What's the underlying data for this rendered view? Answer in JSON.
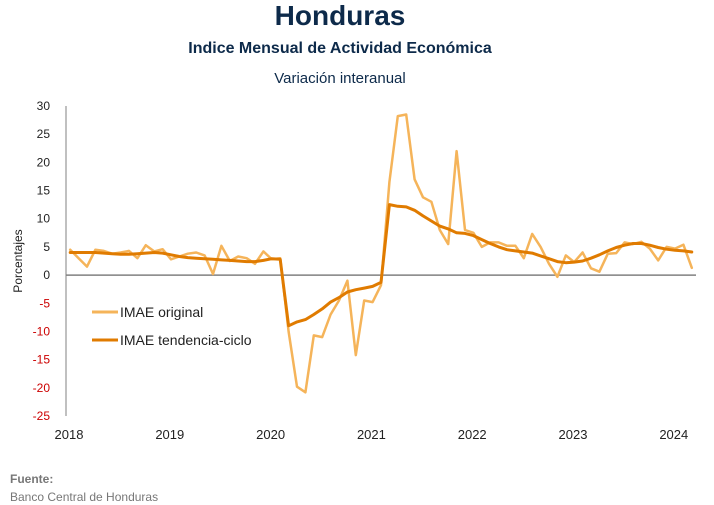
{
  "header": {
    "title": "Honduras",
    "subtitle": "Indice Mensual de  Actividad Económica",
    "subtitle2": "Variación interanual"
  },
  "footer": {
    "label": "Fuente:",
    "source": "Banco Central de Honduras"
  },
  "chart_data": {
    "type": "line",
    "title": "Honduras",
    "ylabel": "Porcentajes",
    "xlabel": "",
    "ylim": [
      -25,
      30
    ],
    "yticks": [
      "30",
      "25",
      "20",
      "15",
      "10",
      "5",
      "0",
      "-5",
      "-10",
      "-15",
      "-20",
      "-25"
    ],
    "xticks": [
      "2018",
      "2019",
      "2020",
      "2021",
      "2022",
      "2023",
      "2024"
    ],
    "legend_position": "lower-left",
    "grid": false,
    "zero_line": true,
    "colors": {
      "original": "#f5b45a",
      "trend": "#e07b00",
      "negative_tick": "#cc0000",
      "axis": "#808080"
    },
    "x_start": "2018-01",
    "series": [
      {
        "name": "IMAE original",
        "values": [
          4.5,
          3.0,
          1.5,
          4.5,
          4.3,
          3.8,
          4.0,
          4.3,
          3.0,
          5.3,
          4.2,
          4.6,
          2.8,
          3.3,
          3.8,
          4.0,
          3.5,
          0.2,
          5.2,
          2.5,
          3.3,
          3.0,
          2.0,
          4.2,
          2.8,
          3.0,
          -10.0,
          -19.8,
          -20.8,
          -10.7,
          -11.0,
          -7.0,
          -4.5,
          -1.0,
          -14.2,
          -4.5,
          -4.8,
          -1.8,
          16.5,
          28.2,
          28.5,
          17.0,
          13.8,
          13.0,
          8.0,
          5.5,
          22.0,
          8.0,
          7.5,
          5.0,
          5.8,
          5.8,
          5.2,
          5.2,
          3.0,
          7.3,
          5.0,
          2.0,
          -0.3,
          3.5,
          2.3,
          4.0,
          1.2,
          0.6,
          3.8,
          3.9,
          5.8,
          5.5,
          5.9,
          4.7,
          2.6,
          5.0,
          4.7,
          5.4,
          1.3
        ],
        "note_ref": null
      },
      {
        "name": "IMAE tendencia-ciclo",
        "values": [
          4.0,
          4.0,
          4.0,
          4.0,
          3.9,
          3.8,
          3.7,
          3.7,
          3.8,
          3.9,
          4.0,
          3.9,
          3.6,
          3.3,
          3.1,
          3.0,
          2.9,
          2.8,
          2.7,
          2.6,
          2.5,
          2.4,
          2.4,
          2.6,
          2.9,
          2.8,
          -9.0,
          -8.3,
          -7.9,
          -7.0,
          -6.0,
          -4.8,
          -4.0,
          -3.0,
          -2.6,
          -2.3,
          -2.0,
          -1.3,
          12.5,
          12.2,
          12.1,
          11.5,
          10.5,
          9.6,
          8.7,
          8.2,
          7.5,
          7.4,
          7.0,
          6.3,
          5.6,
          5.0,
          4.5,
          4.3,
          4.1,
          3.9,
          3.4,
          2.9,
          2.4,
          2.2,
          2.3,
          2.5,
          3.0,
          3.6,
          4.3,
          4.9,
          5.3,
          5.6,
          5.6,
          5.3,
          4.9,
          4.6,
          4.4,
          4.3,
          4.1
        ]
      }
    ]
  }
}
